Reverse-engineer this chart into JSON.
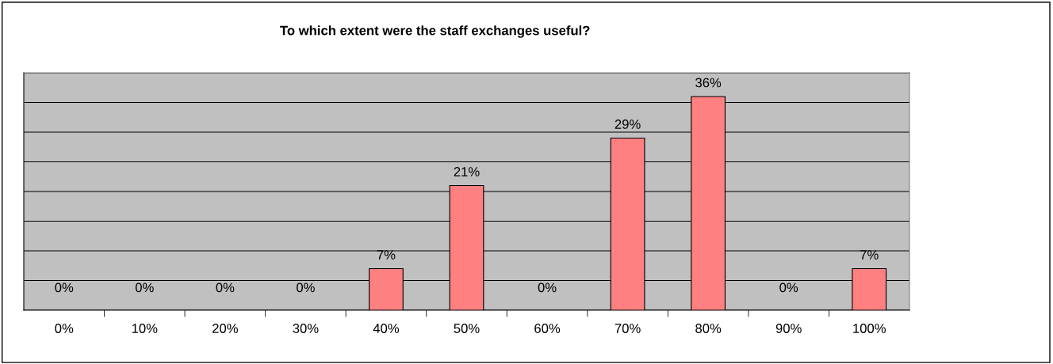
{
  "chart_data": {
    "type": "bar",
    "title": "To which extent were the staff exchanges useful?",
    "categories": [
      "0%",
      "10%",
      "20%",
      "30%",
      "40%",
      "50%",
      "60%",
      "70%",
      "80%",
      "90%",
      "100%"
    ],
    "values": [
      0,
      0,
      0,
      0,
      7,
      21,
      0,
      29,
      36,
      0,
      7
    ],
    "value_labels": [
      "0%",
      "0%",
      "0%",
      "0%",
      "7%",
      "21%",
      "0%",
      "29%",
      "36%",
      "0%",
      "7%"
    ],
    "color": "#ff8080",
    "ylim": [
      0,
      40
    ],
    "yticks": [
      {
        "value": 0,
        "label": null
      },
      {
        "value": 5,
        "label": null
      },
      {
        "value": 10,
        "label": null
      },
      {
        "value": 15,
        "label": null
      },
      {
        "value": 20,
        "label": null
      },
      {
        "value": 25,
        "label": null
      },
      {
        "value": 30,
        "label": null
      },
      {
        "value": 35,
        "label": null
      },
      {
        "value": 40,
        "label": null
      }
    ],
    "tick_labels": "x",
    "grid": "y",
    "legend": false
  }
}
